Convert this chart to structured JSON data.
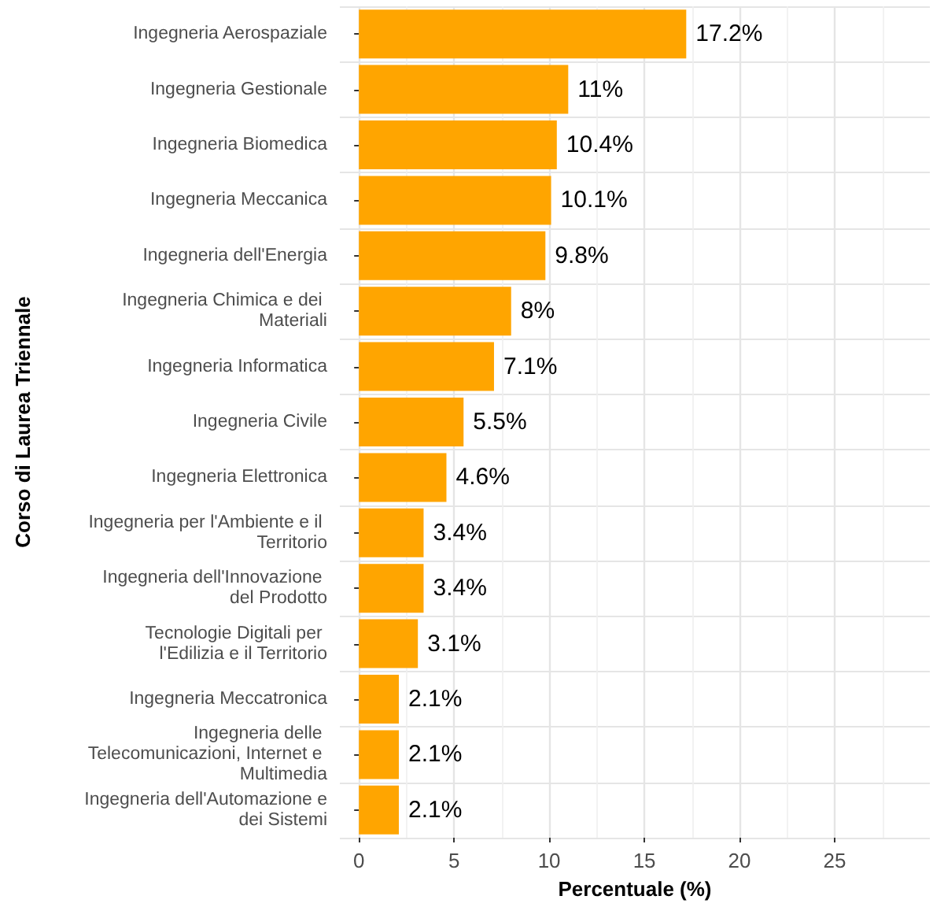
{
  "chart_data": {
    "type": "bar",
    "orientation": "horizontal",
    "xlabel": "Percentuale (%)",
    "ylabel": "Corso di Laurea Triennale",
    "categories": [
      "Ingegneria Aerospaziale",
      "Ingegneria Gestionale",
      "Ingegneria Biomedica",
      "Ingegneria Meccanica",
      "Ingegneria dell'Energia",
      "Ingegneria Chimica e dei Materiali",
      "Ingegneria Informatica",
      "Ingegneria Civile",
      "Ingegneria Elettronica",
      "Ingegneria per l'Ambiente e il Territorio",
      "Ingegneria dell'Innovazione del Prodotto",
      "Tecnologie Digitali per l'Edilizia e il Territorio",
      "Ingegneria Meccatronica",
      "Ingegneria delle Telecomunicazioni, Internet e Multimedia",
      "Ingegneria dell'Automazione e dei Sistemi"
    ],
    "values": [
      17.2,
      11,
      10.4,
      10.1,
      9.8,
      8,
      7.1,
      5.5,
      4.6,
      3.4,
      3.4,
      3.1,
      2.1,
      2.1,
      2.1
    ],
    "value_labels": [
      "17.2%",
      "11%",
      "10.4%",
      "10.1%",
      "9.8%",
      "8%",
      "7.1%",
      "5.5%",
      "4.6%",
      "3.4%",
      "3.4%",
      "3.1%",
      "2.1%",
      "2.1%",
      "2.1%"
    ],
    "color": "#ffa500",
    "xlim": [
      -1,
      30
    ],
    "xticks": [
      0,
      5,
      10,
      15,
      20,
      25
    ],
    "grid": true
  }
}
